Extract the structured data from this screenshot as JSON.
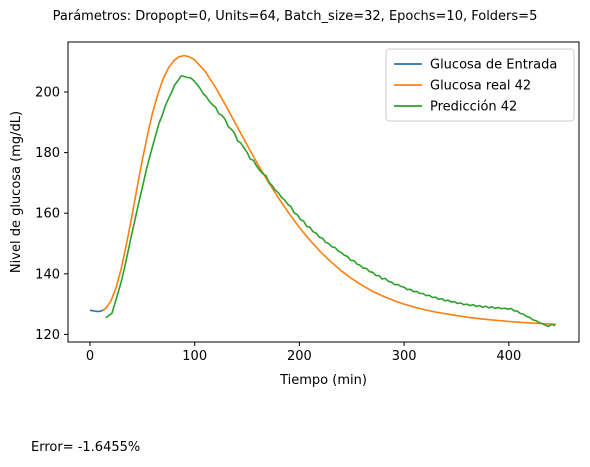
{
  "figure": {
    "title": "Parámetros: Dropopt=0, Units=64, Batch_size=32, Epochs=10, Folders=5",
    "footer": "Error= -1.6455%"
  },
  "chart_data": {
    "type": "line",
    "title": "",
    "xlabel": "Tiempo (min)",
    "ylabel": "Nivel de glucosa (mg/dL)",
    "xlim": [
      -21,
      467
    ],
    "ylim": [
      117.5,
      216.5
    ],
    "xticks": [
      0,
      100,
      200,
      300,
      400
    ],
    "yticks": [
      120,
      140,
      160,
      180,
      200
    ],
    "grid": false,
    "legend_position": "top-right",
    "series": [
      {
        "name": "Glucosa de Entrada",
        "color": "#1f77b4",
        "x": [
          0,
          3,
          6,
          9,
          12,
          15
        ],
        "y": [
          128.0,
          127.8,
          127.6,
          127.6,
          127.9,
          128.6
        ]
      },
      {
        "name": "Glucosa real 42",
        "color": "#ff7f0e",
        "x": [
          12,
          15,
          20,
          25,
          30,
          35,
          40,
          45,
          50,
          55,
          60,
          65,
          70,
          75,
          80,
          85,
          90,
          95,
          100,
          110,
          120,
          130,
          140,
          150,
          160,
          170,
          180,
          190,
          200,
          210,
          220,
          230,
          240,
          250,
          260,
          270,
          280,
          290,
          300,
          310,
          320,
          330,
          340,
          350,
          360,
          370,
          380,
          390,
          400,
          410,
          420,
          430,
          440,
          445
        ],
        "y": [
          128.0,
          128.6,
          131.0,
          135.5,
          142.0,
          150.0,
          159.0,
          168.5,
          177.5,
          186.0,
          193.5,
          199.5,
          204.5,
          208.0,
          210.3,
          211.6,
          212.0,
          211.6,
          210.6,
          206.8,
          201.5,
          195.3,
          188.9,
          182.5,
          176.3,
          170.5,
          165.0,
          160.0,
          155.3,
          151.1,
          147.3,
          144.0,
          141.0,
          138.4,
          136.2,
          134.2,
          132.6,
          131.2,
          130.0,
          129.0,
          128.1,
          127.4,
          126.8,
          126.2,
          125.7,
          125.3,
          124.9,
          124.6,
          124.3,
          124.0,
          123.8,
          123.6,
          123.4,
          123.3
        ]
      },
      {
        "name": "Predicción 42",
        "color": "#2ca02c",
        "x": [
          15,
          18,
          21,
          24,
          27,
          30,
          33,
          36,
          39,
          42,
          45,
          48,
          51,
          54,
          57,
          60,
          63,
          66,
          69,
          72,
          75,
          78,
          81,
          84,
          87,
          90,
          93,
          96,
          99,
          102,
          105,
          108,
          111,
          114,
          117,
          120,
          123,
          126,
          129,
          132,
          135,
          138,
          141,
          144,
          147,
          150,
          153,
          156,
          159,
          162,
          165,
          168,
          171,
          174,
          177,
          180,
          183,
          186,
          189,
          192,
          195,
          198,
          201,
          204,
          207,
          210,
          213,
          216,
          219,
          222,
          225,
          228,
          231,
          234,
          237,
          240,
          243,
          246,
          249,
          252,
          255,
          258,
          261,
          264,
          267,
          270,
          273,
          276,
          279,
          282,
          285,
          288,
          291,
          294,
          297,
          300,
          303,
          306,
          309,
          312,
          315,
          318,
          321,
          324,
          327,
          330,
          333,
          336,
          339,
          342,
          345,
          348,
          351,
          354,
          357,
          360,
          363,
          366,
          369,
          372,
          375,
          378,
          381,
          384,
          387,
          390,
          393,
          396,
          399,
          402,
          405,
          408,
          411,
          414,
          417,
          420,
          423,
          426,
          429,
          432,
          435,
          438,
          441,
          444
        ],
        "y": [
          125.5,
          126.2,
          127.0,
          130.5,
          134.0,
          137.6,
          142.0,
          146.8,
          151.7,
          156.4,
          161.0,
          165.7,
          170.0,
          174.6,
          178.6,
          182.3,
          186.2,
          189.7,
          192.3,
          195.5,
          197.8,
          200.0,
          202.4,
          203.7,
          205.3,
          205.1,
          204.8,
          204.7,
          203.8,
          202.6,
          201.3,
          199.5,
          198.5,
          196.9,
          195.8,
          195.0,
          192.8,
          192.3,
          191.0,
          188.6,
          187.7,
          186.4,
          183.9,
          183.2,
          181.6,
          180.1,
          177.9,
          177.5,
          175.6,
          174.2,
          173.0,
          172.4,
          170.2,
          169.1,
          167.6,
          166.7,
          165.2,
          164.3,
          162.9,
          162.1,
          160.1,
          159.5,
          157.9,
          157.4,
          155.6,
          155.4,
          153.9,
          153.4,
          152.1,
          151.8,
          150.4,
          150.0,
          148.9,
          148.7,
          147.6,
          147.0,
          146.1,
          145.7,
          144.4,
          144.4,
          143.2,
          142.8,
          141.9,
          141.8,
          140.7,
          140.5,
          139.4,
          139.4,
          138.3,
          138.5,
          137.5,
          137.2,
          136.4,
          136.5,
          135.8,
          135.6,
          134.8,
          134.9,
          134.1,
          134.2,
          133.5,
          133.5,
          132.8,
          132.9,
          132.2,
          132.3,
          131.6,
          131.8,
          131.1,
          131.3,
          130.7,
          130.8,
          130.2,
          130.4,
          129.8,
          130.0,
          129.5,
          129.8,
          129.2,
          129.5,
          129.0,
          129.3,
          128.8,
          129.1,
          128.6,
          128.9,
          128.5,
          128.7,
          128.3,
          128.6,
          127.8,
          127.7,
          126.9,
          126.7,
          125.9,
          125.6,
          124.8,
          124.5,
          123.9,
          123.5,
          123.0,
          122.6,
          123.4,
          122.8
        ]
      }
    ]
  }
}
